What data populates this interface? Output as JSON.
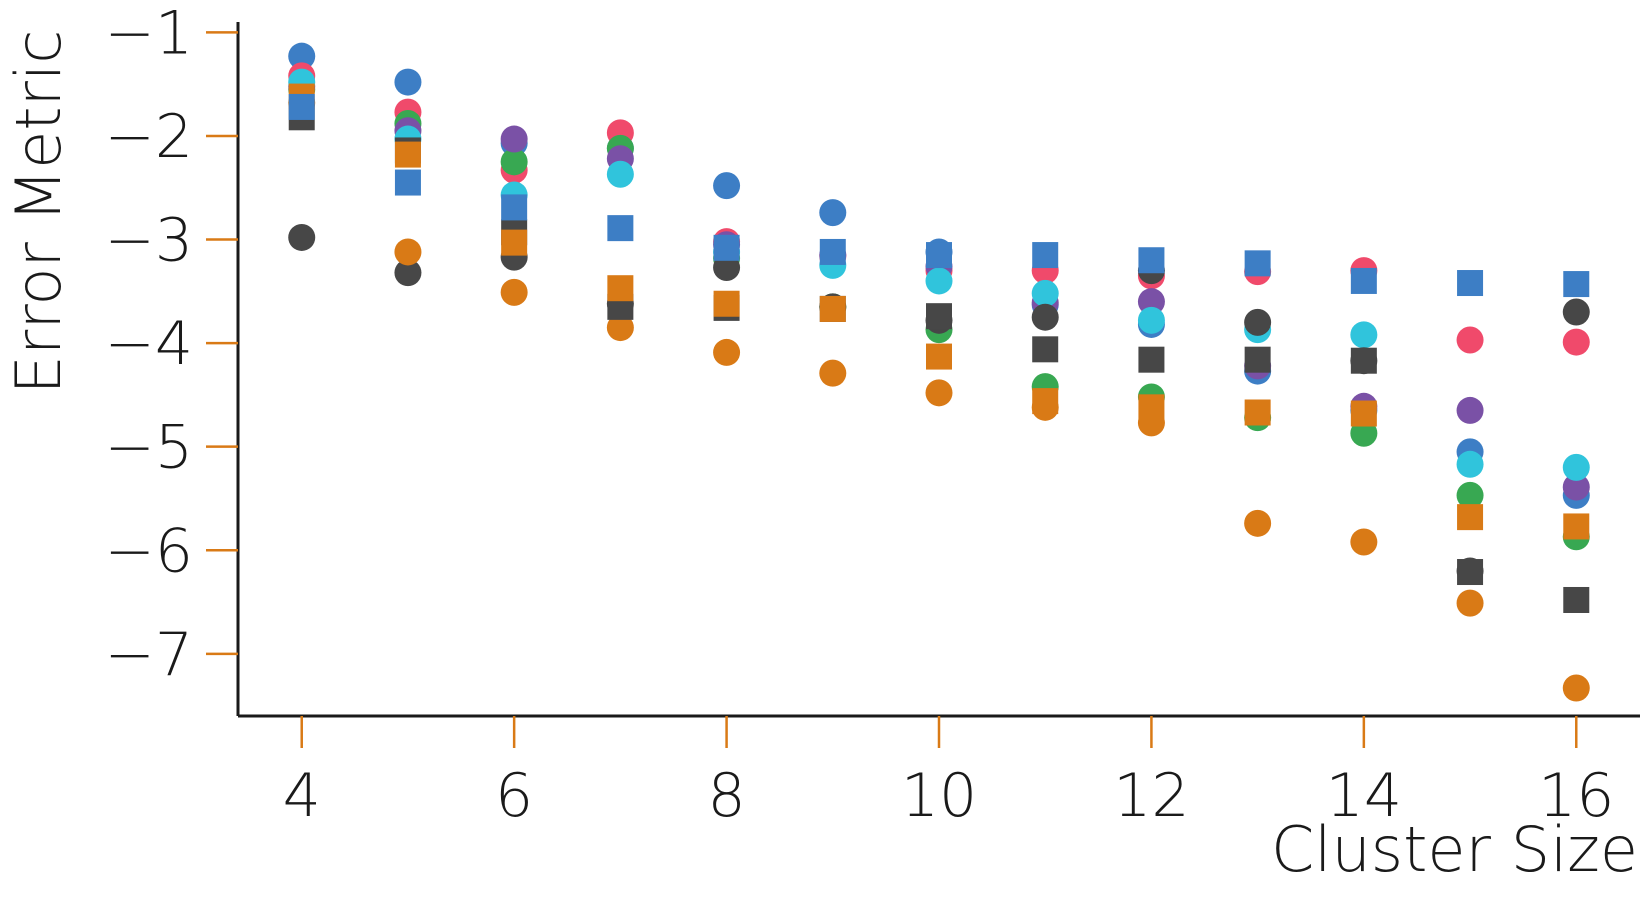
{
  "chart_data": {
    "type": "scatter",
    "title": "",
    "xlabel": "Cluster Size",
    "ylabel": "Error Metric",
    "xlim": [
      3.4,
      16.6
    ],
    "ylim": [
      -7.6,
      -0.9
    ],
    "x_ticks": [
      4,
      6,
      8,
      10,
      12,
      14,
      16
    ],
    "x_tick_labels": [
      "4",
      "6",
      "8",
      "10",
      "12",
      "14",
      "16"
    ],
    "y_ticks": [
      -1,
      -2,
      -3,
      -4,
      -5,
      -6,
      -7
    ],
    "y_tick_labels": [
      "−1",
      "−2",
      "−3",
      "−4",
      "−5",
      "−6",
      "−7"
    ],
    "grid": false,
    "legend": "none",
    "axis_color": "#1a1a1a",
    "tick_color": "#d97a16",
    "x": [
      4,
      5,
      6,
      7,
      8,
      9,
      10,
      11,
      12,
      13,
      14,
      15,
      16
    ],
    "series": [
      {
        "marker": "circle",
        "color": "#3d7ec5",
        "values": [
          -1.23,
          -1.48,
          -2.07,
          -2.12,
          -2.48,
          -2.74,
          -3.12,
          -3.63,
          -3.82,
          -4.27,
          -4.65,
          -5.05,
          -5.47
        ]
      },
      {
        "marker": "circle",
        "color": "#f04a6b",
        "values": [
          -1.42,
          -1.77,
          -2.33,
          -1.97,
          -3.02,
          -3.16,
          -3.3,
          -3.3,
          -3.35,
          -3.31,
          -3.3,
          -3.97,
          -3.99
        ]
      },
      {
        "marker": "circle",
        "color": "#38a852",
        "values": [
          -1.55,
          -1.88,
          -2.25,
          -2.12,
          -3.18,
          -3.65,
          -3.87,
          -4.42,
          -4.52,
          -4.72,
          -4.87,
          -5.47,
          -5.87
        ]
      },
      {
        "marker": "circle",
        "color": "#7a51a6",
        "values": [
          -1.52,
          -1.95,
          -2.03,
          -2.22,
          -3.05,
          -3.15,
          -3.26,
          -3.61,
          -3.6,
          -4.22,
          -4.61,
          -4.65,
          -5.39
        ]
      },
      {
        "marker": "circle",
        "color": "#30c4dc",
        "values": [
          -1.48,
          -2.03,
          -2.57,
          -2.37,
          -3.12,
          -3.25,
          -3.4,
          -3.52,
          -3.78,
          -3.87,
          -3.92,
          -5.17,
          -5.2
        ]
      },
      {
        "marker": "circle",
        "color": "#474747",
        "values": [
          -2.98,
          -3.32,
          -3.17,
          -3.62,
          -3.27,
          -3.65,
          -3.78,
          -3.75,
          -3.3,
          -3.8,
          -4.17,
          -6.2,
          -3.7
        ]
      },
      {
        "marker": "circle",
        "color": "#d97a16",
        "values": [
          -1.68,
          -3.12,
          -3.51,
          -3.85,
          -4.09,
          -4.29,
          -4.48,
          -4.62,
          -4.77,
          -5.74,
          -5.92,
          -6.51,
          -7.33
        ]
      },
      {
        "marker": "square",
        "color": "#474747",
        "values": [
          -1.82,
          -2.14,
          -2.93,
          -3.65,
          -3.66,
          -3.67,
          -3.74,
          -4.06,
          -4.16,
          -4.16,
          -4.17,
          -6.21,
          -6.48
        ]
      },
      {
        "marker": "square",
        "color": "#d97a16",
        "values": [
          -1.62,
          -2.18,
          -3.03,
          -3.47,
          -3.62,
          -3.67,
          -4.13,
          -4.56,
          -4.62,
          -4.67,
          -4.68,
          -5.68,
          -5.77
        ]
      },
      {
        "marker": "square",
        "color": "#3d7ec5",
        "values": [
          -1.72,
          -2.45,
          -2.69,
          -2.89,
          -3.08,
          -3.12,
          -3.15,
          -3.15,
          -3.2,
          -3.23,
          -3.4,
          -3.42,
          -3.43
        ]
      }
    ]
  }
}
